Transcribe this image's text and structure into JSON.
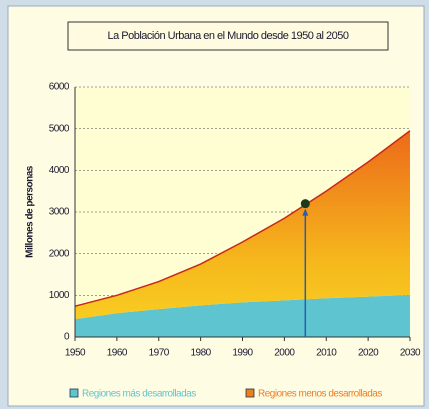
{
  "chart_data": {
    "type": "stacked_area",
    "title": "La Población Urbana en el Mundo desde 1950 al 2050",
    "y_label": "Millones de personas",
    "x": [
      1950,
      1960,
      1970,
      1980,
      1990,
      2000,
      2010,
      2020,
      2030
    ],
    "series": [
      {
        "name": "Regiones más desarrolladas",
        "color": "#5ec4cf",
        "values": [
          430,
          570,
          670,
          760,
          830,
          880,
          930,
          970,
          1010
        ]
      },
      {
        "name": "Regiones menos desarrolladas",
        "color": "#ef7d1c",
        "values": [
          310,
          430,
          660,
          990,
          1450,
          1970,
          2570,
          3230,
          3940
        ]
      }
    ],
    "highlight_point": {
      "x": 2005,
      "y": 3200
    },
    "xlim": [
      1950,
      2030
    ],
    "xticks": [
      1950,
      1960,
      1970,
      1980,
      1990,
      2000,
      2010,
      2020,
      2030
    ],
    "ylim": [
      0,
      6000
    ],
    "yticks": [
      0,
      1000,
      2000,
      3000,
      4000,
      5000,
      6000
    ],
    "grid": true
  }
}
